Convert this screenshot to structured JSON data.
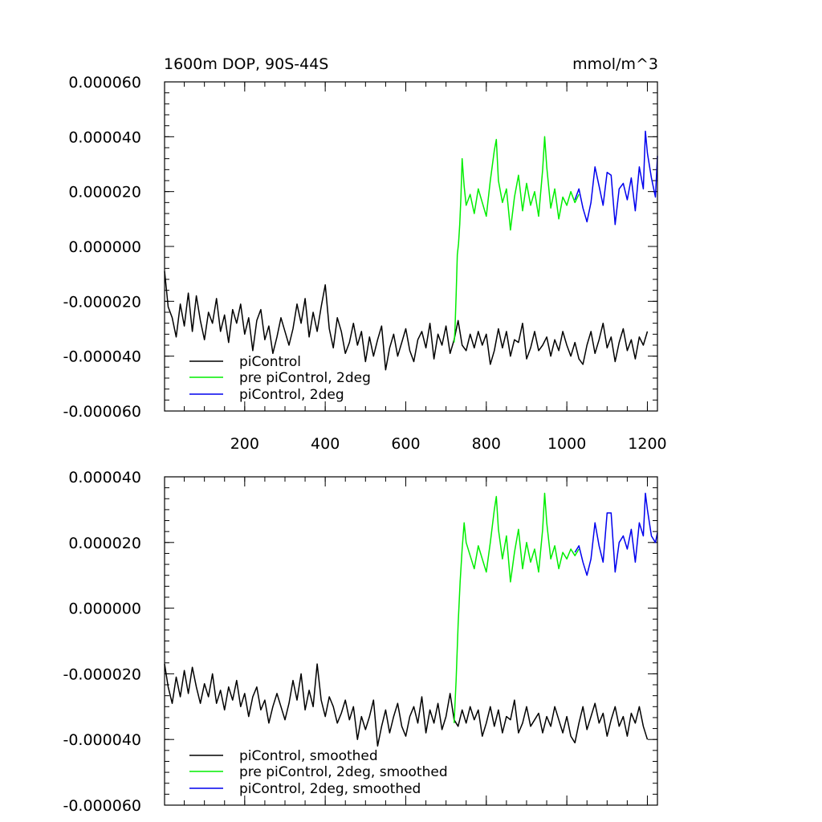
{
  "panels": [
    {
      "title_left": "1600m DOP, 90S-44S",
      "title_right": "mmol/m^3",
      "ytick_labels": [
        "0.000060",
        "0.000040",
        "0.000020",
        "0.000000",
        "-0.000020",
        "-0.000040",
        "-0.000060"
      ],
      "xtick_labels": [
        "200",
        "400",
        "600",
        "800",
        "1000",
        "1200"
      ],
      "legend": [
        "piControl",
        "pre piControl, 2deg",
        "piControl, 2deg"
      ]
    },
    {
      "ytick_labels": [
        "0.000040",
        "0.000020",
        "0.000000",
        "-0.000020",
        "-0.000040",
        "-0.000060"
      ],
      "legend": [
        "piControl, smoothed",
        "pre piControl, 2deg, smoothed",
        "piControl, 2deg, smoothed"
      ]
    }
  ],
  "chart_data": [
    {
      "type": "line",
      "title": "1600m DOP, 90S-44S",
      "units": "mmol/m^3",
      "xlim": [
        1,
        1225
      ],
      "ylim": [
        -6e-05,
        6e-05
      ],
      "xticks": [
        200,
        400,
        600,
        800,
        1000,
        1200
      ],
      "yticks": [
        6e-05,
        4e-05,
        2e-05,
        0.0,
        -2e-05,
        -4e-05,
        -6e-05
      ],
      "grid": false,
      "legend_position": "bottom-left",
      "series": [
        {
          "name": "piControl",
          "color": "#000000",
          "x": [
            1,
            10,
            20,
            30,
            40,
            50,
            60,
            70,
            80,
            90,
            100,
            110,
            120,
            130,
            140,
            150,
            160,
            170,
            180,
            190,
            200,
            210,
            220,
            230,
            240,
            250,
            260,
            270,
            280,
            290,
            300,
            310,
            320,
            330,
            340,
            350,
            360,
            370,
            380,
            390,
            400,
            410,
            420,
            430,
            440,
            450,
            460,
            470,
            480,
            490,
            500,
            510,
            520,
            530,
            540,
            550,
            560,
            570,
            580,
            590,
            600,
            610,
            620,
            630,
            640,
            650,
            660,
            670,
            680,
            690,
            700,
            710,
            720,
            730,
            740,
            750,
            760,
            770,
            780,
            790,
            800,
            810,
            820,
            830,
            840,
            850,
            860,
            870,
            880,
            890,
            900,
            910,
            920,
            930,
            940,
            950,
            960,
            970,
            980,
            990,
            1000,
            1010,
            1020,
            1030,
            1040,
            1050,
            1060,
            1070,
            1080,
            1090,
            1100,
            1110,
            1120,
            1130,
            1140,
            1150,
            1160,
            1170,
            1180,
            1190,
            1200
          ],
          "y": [
            -9e-06,
            -2.2e-05,
            -2.6e-05,
            -3.3e-05,
            -2.1e-05,
            -2.9e-05,
            -1.7e-05,
            -3.1e-05,
            -1.8e-05,
            -2.7e-05,
            -3.4e-05,
            -2.4e-05,
            -2.8e-05,
            -1.9e-05,
            -3.1e-05,
            -2.5e-05,
            -3.5e-05,
            -2.3e-05,
            -2.8e-05,
            -2.1e-05,
            -3.2e-05,
            -2.6e-05,
            -3.8e-05,
            -2.7e-05,
            -2.3e-05,
            -3.4e-05,
            -2.9e-05,
            -3.9e-05,
            -3.3e-05,
            -2.6e-05,
            -3.1e-05,
            -3.6e-05,
            -3e-05,
            -2.1e-05,
            -2.8e-05,
            -1.9e-05,
            -3.3e-05,
            -2.4e-05,
            -3.1e-05,
            -2.2e-05,
            -1.4e-05,
            -3e-05,
            -3.7e-05,
            -2.6e-05,
            -3.1e-05,
            -3.9e-05,
            -3.5e-05,
            -2.8e-05,
            -3.6e-05,
            -3.1e-05,
            -4.2e-05,
            -3.3e-05,
            -4e-05,
            -3.4e-05,
            -2.9e-05,
            -4.5e-05,
            -3.7e-05,
            -3.2e-05,
            -4e-05,
            -3.5e-05,
            -3e-05,
            -3.8e-05,
            -4.2e-05,
            -3.4e-05,
            -3.1e-05,
            -3.7e-05,
            -2.8e-05,
            -4.1e-05,
            -3.2e-05,
            -3.6e-05,
            -2.9e-05,
            -3.9e-05,
            -3.4e-05,
            -2.7e-05,
            -3.6e-05,
            -3.8e-05,
            -3.2e-05,
            -3.7e-05,
            -3.1e-05,
            -3.6e-05,
            -3.2e-05,
            -4.3e-05,
            -3.8e-05,
            -3e-05,
            -3.7e-05,
            -3.1e-05,
            -4e-05,
            -3.4e-05,
            -3.5e-05,
            -2.8e-05,
            -4.1e-05,
            -3.7e-05,
            -3.1e-05,
            -3.8e-05,
            -3.6e-05,
            -3.3e-05,
            -4e-05,
            -3.4e-05,
            -3.8e-05,
            -3.1e-05,
            -3.6e-05,
            -4e-05,
            -3.5e-05,
            -4.1e-05,
            -4.3e-05,
            -3.6e-05,
            -3.1e-05,
            -3.9e-05,
            -3.4e-05,
            -2.8e-05,
            -3.7e-05,
            -3.3e-05,
            -4.2e-05,
            -3.5e-05,
            -3e-05,
            -3.8e-05,
            -3.4e-05,
            -4.1e-05,
            -3.3e-05,
            -3.6e-05,
            -3.1e-05
          ]
        },
        {
          "name": "pre piControl, 2deg",
          "color": "#00ee00",
          "x": [
            720,
            722,
            725,
            728,
            731,
            734,
            737,
            740,
            745,
            750,
            760,
            770,
            780,
            790,
            800,
            810,
            820,
            825,
            830,
            840,
            850,
            860,
            870,
            880,
            890,
            900,
            910,
            920,
            930,
            940,
            945,
            950,
            960,
            970,
            980,
            990,
            1000,
            1010,
            1020,
            1030
          ],
          "y": [
            -3.5e-05,
            -3.1e-05,
            -1.8e-05,
            -3e-06,
            1e-06,
            8e-06,
            1.8e-05,
            3.2e-05,
            2.2e-05,
            1.5e-05,
            1.9e-05,
            1.2e-05,
            2.1e-05,
            1.6e-05,
            1.1e-05,
            2.4e-05,
            3.5e-05,
            3.9e-05,
            2.4e-05,
            1.6e-05,
            2.1e-05,
            6e-06,
            1.8e-05,
            2.6e-05,
            1.3e-05,
            2.3e-05,
            1.5e-05,
            2e-05,
            1.1e-05,
            2.8e-05,
            4e-05,
            2.9e-05,
            1.4e-05,
            2.1e-05,
            1e-05,
            1.8e-05,
            1.5e-05,
            2e-05,
            1.6e-05,
            1.9e-05
          ]
        },
        {
          "name": "piControl, 2deg",
          "color": "#0000ee",
          "x": [
            1020,
            1030,
            1040,
            1050,
            1060,
            1070,
            1080,
            1090,
            1100,
            1110,
            1120,
            1130,
            1140,
            1150,
            1160,
            1170,
            1180,
            1190,
            1195,
            1200,
            1210,
            1220,
            1225
          ],
          "y": [
            1.7e-05,
            2.1e-05,
            1.4e-05,
            9e-06,
            1.6e-05,
            2.9e-05,
            2.2e-05,
            1.5e-05,
            2.7e-05,
            2.6e-05,
            8e-06,
            2.1e-05,
            2.3e-05,
            1.7e-05,
            2.5e-05,
            1.3e-05,
            2.9e-05,
            2.1e-05,
            4.2e-05,
            3.4e-05,
            2.5e-05,
            1.8e-05,
            3.3e-05
          ]
        }
      ]
    },
    {
      "type": "line",
      "xlim": [
        1,
        1225
      ],
      "ylim": [
        -6e-05,
        4e-05
      ],
      "xticks": [
        200,
        400,
        600,
        800,
        1000,
        1200
      ],
      "yticks": [
        4e-05,
        2e-05,
        0.0,
        -2e-05,
        -4e-05,
        -6e-05
      ],
      "grid": false,
      "legend_position": "bottom-left",
      "series": [
        {
          "name": "piControl, smoothed",
          "color": "#000000",
          "x": [
            1,
            10,
            20,
            30,
            40,
            50,
            60,
            70,
            80,
            90,
            100,
            110,
            120,
            130,
            140,
            150,
            160,
            170,
            180,
            190,
            200,
            210,
            220,
            230,
            240,
            250,
            260,
            270,
            280,
            290,
            300,
            310,
            320,
            330,
            340,
            350,
            360,
            370,
            380,
            390,
            400,
            410,
            420,
            430,
            440,
            450,
            460,
            470,
            480,
            490,
            500,
            510,
            520,
            530,
            540,
            550,
            560,
            570,
            580,
            590,
            600,
            610,
            620,
            630,
            640,
            650,
            660,
            670,
            680,
            690,
            700,
            710,
            720,
            730,
            740,
            750,
            760,
            770,
            780,
            790,
            800,
            810,
            820,
            830,
            840,
            850,
            860,
            870,
            880,
            890,
            900,
            910,
            920,
            930,
            940,
            950,
            960,
            970,
            980,
            990,
            1000,
            1010,
            1020,
            1030,
            1040,
            1050,
            1060,
            1070,
            1080,
            1090,
            1100,
            1110,
            1120,
            1130,
            1140,
            1150,
            1160,
            1170,
            1180,
            1190,
            1200
          ],
          "y": [
            -1.7e-05,
            -2.4e-05,
            -2.9e-05,
            -2.1e-05,
            -2.7e-05,
            -1.9e-05,
            -2.6e-05,
            -1.8e-05,
            -2.4e-05,
            -2.9e-05,
            -2.3e-05,
            -2.7e-05,
            -2e-05,
            -2.9e-05,
            -2.5e-05,
            -3.1e-05,
            -2.4e-05,
            -2.8e-05,
            -2.2e-05,
            -3e-05,
            -2.6e-05,
            -3.3e-05,
            -2.7e-05,
            -2.4e-05,
            -3.1e-05,
            -2.8e-05,
            -3.5e-05,
            -3e-05,
            -2.6e-05,
            -3e-05,
            -3.4e-05,
            -2.9e-05,
            -2.2e-05,
            -2.8e-05,
            -2e-05,
            -3.1e-05,
            -2.5e-05,
            -3e-05,
            -1.7e-05,
            -2.8e-05,
            -3.3e-05,
            -2.7e-05,
            -3e-05,
            -3.5e-05,
            -3.2e-05,
            -2.8e-05,
            -3.4e-05,
            -3e-05,
            -4e-05,
            -3.3e-05,
            -3.7e-05,
            -3.3e-05,
            -2.8e-05,
            -4.2e-05,
            -3.6e-05,
            -3.1e-05,
            -3.8e-05,
            -3.3e-05,
            -2.9e-05,
            -3.6e-05,
            -3.9e-05,
            -3.3e-05,
            -3e-05,
            -3.5e-05,
            -2.7e-05,
            -3.8e-05,
            -3.1e-05,
            -3.5e-05,
            -2.9e-05,
            -3.7e-05,
            -3.3e-05,
            -2.6e-05,
            -3.4e-05,
            -3.6e-05,
            -3.1e-05,
            -3.5e-05,
            -3e-05,
            -3.4e-05,
            -3.1e-05,
            -3.9e-05,
            -3.5e-05,
            -3e-05,
            -3.6e-05,
            -3.1e-05,
            -3.8e-05,
            -3.3e-05,
            -3.4e-05,
            -2.8e-05,
            -3.8e-05,
            -3.5e-05,
            -3e-05,
            -3.6e-05,
            -3.4e-05,
            -3.2e-05,
            -3.8e-05,
            -3.3e-05,
            -3.6e-05,
            -3e-05,
            -3.4e-05,
            -3.8e-05,
            -3.3e-05,
            -3.9e-05,
            -4.1e-05,
            -3.5e-05,
            -3e-05,
            -3.7e-05,
            -3.3e-05,
            -2.9e-05,
            -3.5e-05,
            -3.2e-05,
            -3.9e-05,
            -3.4e-05,
            -3e-05,
            -3.6e-05,
            -3.3e-05,
            -3.9e-05,
            -3.2e-05,
            -3.5e-05,
            -3e-05,
            -3.6e-05,
            -4e-05
          ]
        },
        {
          "name": "pre piControl, 2deg, smoothed",
          "color": "#00ee00",
          "x": [
            720,
            725,
            730,
            735,
            740,
            745,
            750,
            760,
            770,
            780,
            790,
            800,
            810,
            820,
            825,
            830,
            840,
            850,
            860,
            870,
            880,
            890,
            900,
            910,
            920,
            930,
            940,
            945,
            950,
            960,
            970,
            980,
            990,
            1000,
            1010,
            1020,
            1030
          ],
          "y": [
            -3.5e-05,
            -2.2e-05,
            -5e-06,
            8e-06,
            1.8e-05,
            2.6e-05,
            2e-05,
            1.6e-05,
            1.2e-05,
            1.9e-05,
            1.5e-05,
            1.1e-05,
            2e-05,
            3e-05,
            3.4e-05,
            2.4e-05,
            1.5e-05,
            2.2e-05,
            8e-06,
            1.7e-05,
            2.4e-05,
            1.2e-05,
            2e-05,
            1.4e-05,
            1.8e-05,
            1.1e-05,
            2.4e-05,
            3.5e-05,
            2.6e-05,
            1.5e-05,
            1.9e-05,
            1.2e-05,
            1.7e-05,
            1.5e-05,
            1.8e-05,
            1.6e-05,
            1.8e-05
          ]
        },
        {
          "name": "piControl, 2deg, smoothed",
          "color": "#0000ee",
          "x": [
            1020,
            1030,
            1040,
            1050,
            1060,
            1070,
            1080,
            1090,
            1100,
            1110,
            1120,
            1130,
            1140,
            1150,
            1160,
            1170,
            1180,
            1190,
            1195,
            1200,
            1210,
            1220,
            1225
          ],
          "y": [
            1.7e-05,
            1.9e-05,
            1.4e-05,
            1e-05,
            1.5e-05,
            2.6e-05,
            1.9e-05,
            1.4e-05,
            2.9e-05,
            2.9e-05,
            1.1e-05,
            2e-05,
            2.2e-05,
            1.8e-05,
            2.4e-05,
            1.4e-05,
            2.6e-05,
            2.2e-05,
            3.5e-05,
            3e-05,
            2.2e-05,
            2e-05,
            2.3e-05
          ]
        }
      ]
    }
  ]
}
